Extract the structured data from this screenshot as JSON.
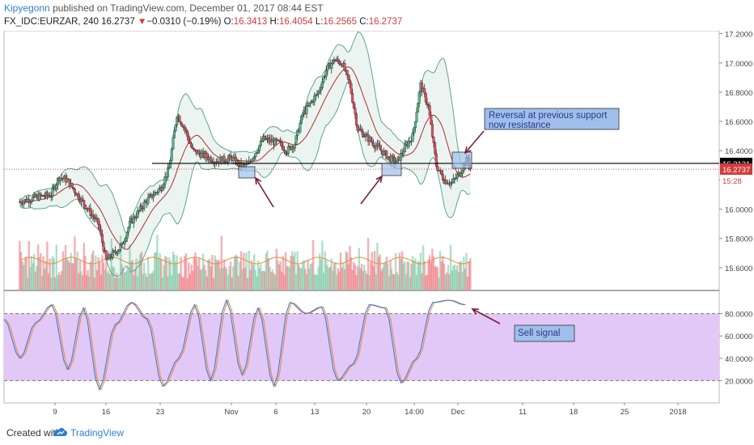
{
  "header": {
    "author": "Kipyegonn",
    "published": "published on TradingView.com, December 01, 2017 08:44 EST",
    "symbol": "FX_IDC:EURZAR, 240",
    "last": "16.2737",
    "change_arrow": "▼",
    "change": "−0.0310 (−0.19%)",
    "o_label": "O:",
    "o_value": "16.3413",
    "h_label": "H:",
    "h_value": "16.4054",
    "l_label": "L:",
    "l_value": "16.2565",
    "c_label": "C:",
    "c_value": "16.2737"
  },
  "annotations": {
    "reversal": "Reversal at previous support now resistance",
    "sell": "Sell signal"
  },
  "price_tags": {
    "level": "16.3131",
    "last": "16.2737",
    "countdown": "15:28"
  },
  "footer": {
    "created_with": "Created with",
    "brand": "TradingView",
    "logo_icon": "tradingview-cloud-icon"
  },
  "colors": {
    "up": "#53b987",
    "down": "#eb4d5c",
    "bollinger": "#5da58f",
    "basis": "#b22f2f",
    "stoch_bg": "#e2c8f7",
    "stoch_k": "#3b7dd8",
    "stoch_d": "#ef8a3a",
    "level_line": "#000000",
    "last_price": "#d23b3b",
    "callout_fill": "#9fbfea"
  },
  "chart_data": [
    {
      "type": "candlestick",
      "title": "FX_IDC:EURZAR, 240",
      "x_ticks": [
        "9",
        "16",
        "23",
        "Nov",
        "6",
        "13",
        "20",
        "14:00",
        "Dec",
        "11",
        "18",
        "25",
        "2018"
      ],
      "y_ticks": [
        "15.6000",
        "15.8000",
        "16.0000",
        "16.2000",
        "16.4000",
        "16.6000",
        "16.8000",
        "17.0000",
        "17.2000"
      ],
      "ylim": [
        15.45,
        17.22
      ],
      "horizontal_level": 16.3131,
      "last_price": 16.2737,
      "indicators": [
        "Bollinger Bands",
        "Volume"
      ],
      "close_path": [
        {
          "x": "Oct 5",
          "y": 16.05
        },
        {
          "x": "Oct 7",
          "y": 16.08
        },
        {
          "x": "Oct 9",
          "y": 16.1
        },
        {
          "x": "Oct 10",
          "y": 16.22
        },
        {
          "x": "Oct 11",
          "y": 16.2
        },
        {
          "x": "Oct 13",
          "y": 16.05
        },
        {
          "x": "Oct 15",
          "y": 15.9
        },
        {
          "x": "Oct 16",
          "y": 15.65
        },
        {
          "x": "Oct 18",
          "y": 15.75
        },
        {
          "x": "Oct 19",
          "y": 15.9
        },
        {
          "x": "Oct 21",
          "y": 16.05
        },
        {
          "x": "Oct 23",
          "y": 16.15
        },
        {
          "x": "Oct 24",
          "y": 16.28
        },
        {
          "x": "Oct 25",
          "y": 16.65
        },
        {
          "x": "Oct 26",
          "y": 16.55
        },
        {
          "x": "Oct 27",
          "y": 16.4
        },
        {
          "x": "Oct 30",
          "y": 16.33
        },
        {
          "x": "Nov 1",
          "y": 16.35
        },
        {
          "x": "Nov 2",
          "y": 16.3
        },
        {
          "x": "Nov 3",
          "y": 16.3
        },
        {
          "x": "Nov 5",
          "y": 16.48
        },
        {
          "x": "Nov 7",
          "y": 16.45
        },
        {
          "x": "Nov 8",
          "y": 16.4
        },
        {
          "x": "Nov 9",
          "y": 16.45
        },
        {
          "x": "Nov 10",
          "y": 16.65
        },
        {
          "x": "Nov 12",
          "y": 16.8
        },
        {
          "x": "Nov 13",
          "y": 16.95
        },
        {
          "x": "Nov 14",
          "y": 17.02
        },
        {
          "x": "Nov 15",
          "y": 17.0
        },
        {
          "x": "Nov 16",
          "y": 16.85
        },
        {
          "x": "Nov 17",
          "y": 16.55
        },
        {
          "x": "Nov 19",
          "y": 16.45
        },
        {
          "x": "Nov 20",
          "y": 16.4
        },
        {
          "x": "Nov 21",
          "y": 16.35
        },
        {
          "x": "Nov 22",
          "y": 16.32
        },
        {
          "x": "Nov 23",
          "y": 16.42
        },
        {
          "x": "Nov 24",
          "y": 16.5
        },
        {
          "x": "Nov 25",
          "y": 16.85
        },
        {
          "x": "Nov 26",
          "y": 16.7
        },
        {
          "x": "Nov 27",
          "y": 16.3
        },
        {
          "x": "Nov 28",
          "y": 16.2
        },
        {
          "x": "Nov 29",
          "y": 16.18
        },
        {
          "x": "Nov 30",
          "y": 16.25
        },
        {
          "x": "Dec 1",
          "y": 16.35
        },
        {
          "x": "Dec 1 08:00",
          "y": 16.2737
        }
      ]
    },
    {
      "type": "line",
      "title": "Stochastic",
      "y_ticks": [
        "20.0000",
        "40.0000",
        "60.0000",
        "80.0000"
      ],
      "ylim": [
        0,
        100
      ],
      "bands": [
        20,
        80
      ],
      "series": [
        {
          "name": "%K",
          "values": [
            75,
            40,
            72,
            88,
            30,
            85,
            12,
            70,
            90,
            75,
            15,
            40,
            88,
            20,
            92,
            25,
            85,
            15,
            90,
            80,
            86,
            20,
            35,
            88,
            85,
            18,
            40,
            90,
            92,
            88
          ]
        }
      ]
    }
  ]
}
